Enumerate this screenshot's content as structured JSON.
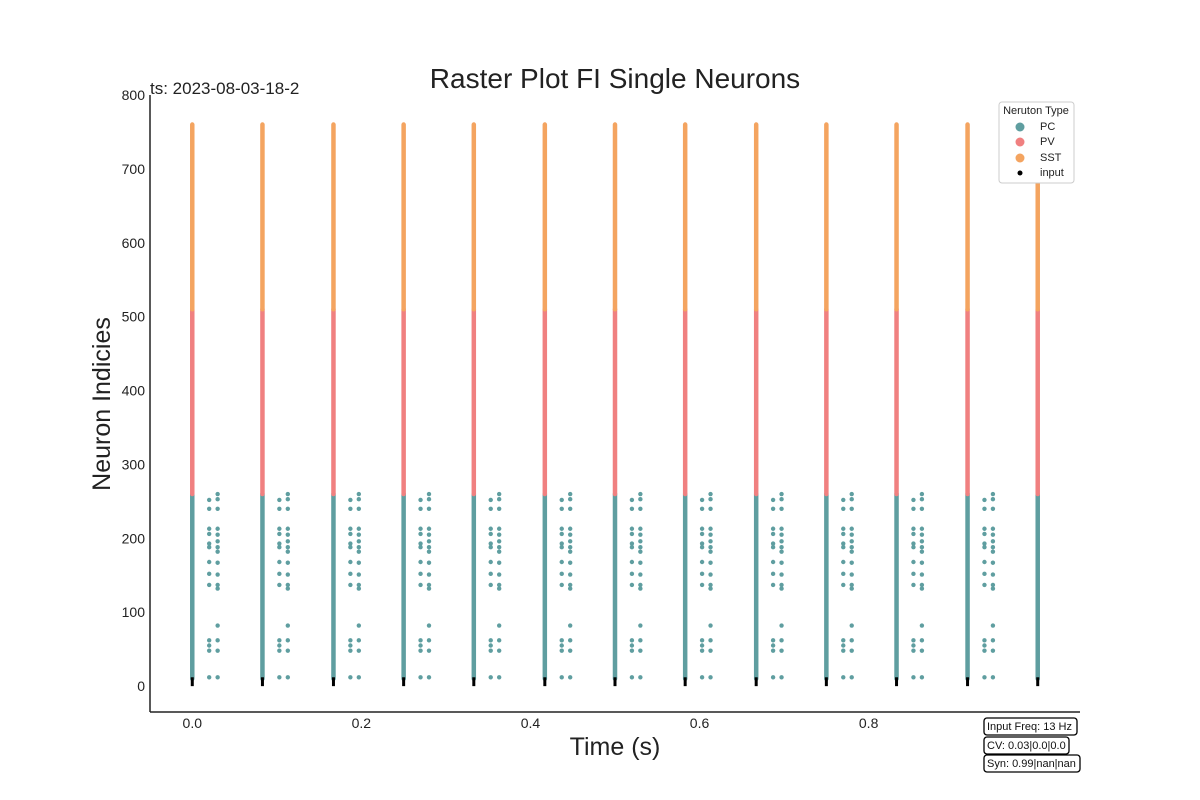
{
  "chart_data": {
    "type": "scatter",
    "title": "Raster Plot FI Single Neurons",
    "timestamp": "ts: 2023-08-03-18-2",
    "xlabel": "Time (s)",
    "ylabel": "Neuron Indicies",
    "xlim": [
      -0.05,
      1.05
    ],
    "ylim": [
      -35,
      800
    ],
    "xticks": [
      0.0,
      0.2,
      0.4,
      0.6,
      0.8
    ],
    "xtick_labels": [
      "0.0",
      "0.2",
      "0.4",
      "0.6",
      "0.8"
    ],
    "yticks": [
      0,
      100,
      200,
      300,
      400,
      500,
      600,
      700,
      800
    ],
    "ytick_labels": [
      "0",
      "100",
      "200",
      "300",
      "400",
      "500",
      "600",
      "700",
      "800"
    ],
    "grid": false,
    "legend": {
      "title": "Neruton Type",
      "placement": "top-right",
      "entries": [
        {
          "label": "PC",
          "color": "#5f9ea0"
        },
        {
          "label": "PV",
          "color": "#f08080"
        },
        {
          "label": "SST",
          "color": "#f4a460"
        },
        {
          "label": "input",
          "color": "#000000"
        }
      ]
    },
    "burst_times": [
      0.0,
      0.083,
      0.167,
      0.25,
      0.333,
      0.417,
      0.5,
      0.583,
      0.667,
      0.75,
      0.833,
      0.917,
      1.0
    ],
    "series": [
      {
        "name": "PC",
        "neuron_range": [
          10,
          260
        ],
        "color": "#5f9ea0"
      },
      {
        "name": "PV",
        "neuron_range": [
          260,
          510
        ],
        "color": "#f08080"
      },
      {
        "name": "SST",
        "neuron_range": [
          510,
          760
        ],
        "color": "#f4a460"
      },
      {
        "name": "input",
        "neuron_range": [
          0,
          12
        ],
        "color": "#000000"
      }
    ],
    "pc_late_spikes": {
      "offset_a": 0.02,
      "offset_b": 0.03,
      "neurons_a": [
        252,
        240,
        213,
        206,
        193,
        188,
        168,
        152,
        137,
        62,
        55,
        48,
        12
      ],
      "neurons_b": [
        260,
        253,
        240,
        213,
        205,
        196,
        188,
        182,
        167,
        151,
        137,
        132,
        82,
        62,
        48,
        12
      ]
    },
    "annotations": [
      "Input Freq: 13 Hz",
      "CV: 0.03|0.0|0.0",
      "Syn: 0.99|nan|nan"
    ]
  }
}
